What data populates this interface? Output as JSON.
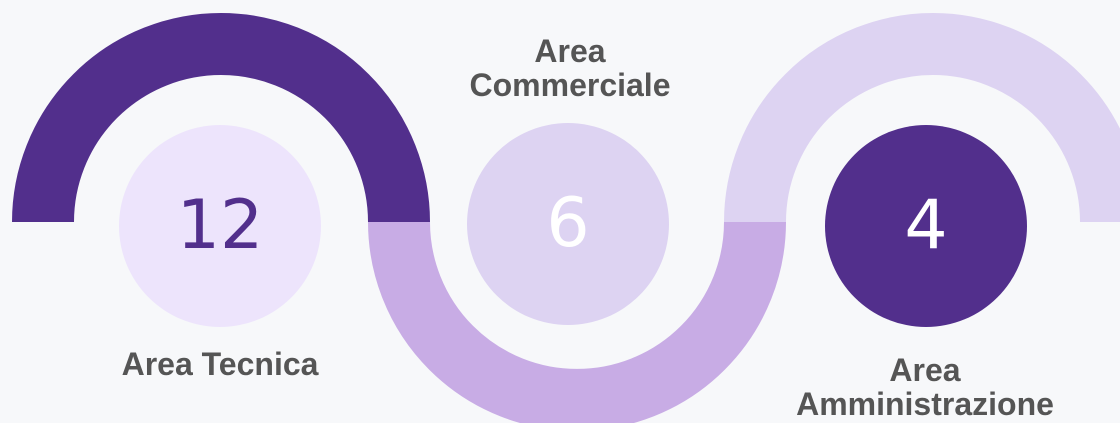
{
  "items": [
    {
      "value": "12",
      "label_lines": [
        "Area Tecnica"
      ]
    },
    {
      "value": "6",
      "label_lines": [
        "Area",
        "Commerciale"
      ]
    },
    {
      "value": "4",
      "label_lines": [
        "Area",
        "Amministrazione"
      ]
    }
  ],
  "colors": {
    "background": "#f7f8fa",
    "arc_dark": "#522f8c",
    "arc_medium": "#c8ace5",
    "arc_light": "#ddd3f2",
    "circle_1": "#ede4fc",
    "circle_2": "#ddd3f2",
    "circle_3": "#522f8c",
    "number_dark": "#522f8c",
    "number_light": "#ffffff",
    "label_text": "#555555"
  }
}
